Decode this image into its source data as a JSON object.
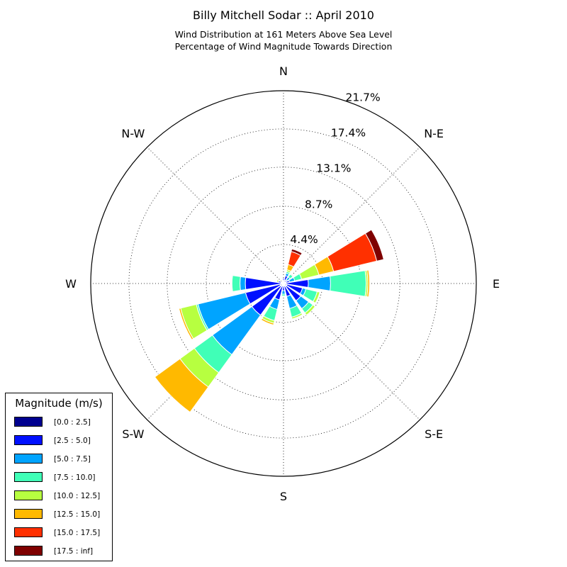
{
  "title": "Billy Mitchell Sodar :: April 2010",
  "subtitle_1": "Wind Distribution at 161 Meters Above Sea Level",
  "subtitle_2": "Percentage of Wind Magnitude Towards Direction",
  "legend": {
    "title": "Magnitude (m/s)",
    "entries": [
      {
        "label": "[0.0 : 2.5]",
        "color": "#00008f"
      },
      {
        "label": "[2.5 : 5.0]",
        "color": "#0010ff"
      },
      {
        "label": "[5.0 : 7.5]",
        "color": "#00a4ff"
      },
      {
        "label": "[7.5 : 10.0]",
        "color": "#40ffb7"
      },
      {
        "label": "[10.0 : 12.5]",
        "color": "#b7ff40"
      },
      {
        "label": "[12.5 : 15.0]",
        "color": "#ffb900"
      },
      {
        "label": "[15.0 : 17.5]",
        "color": "#ff3000"
      },
      {
        "label": "[17.5 : inf]",
        "color": "#7f0000"
      }
    ]
  },
  "chart_data": {
    "type": "windrose",
    "radial_max": 21.7,
    "radial_ticks": [
      4.4,
      8.7,
      13.1,
      17.4,
      21.7
    ],
    "radial_tick_labels": [
      "4.4%",
      "8.7%",
      "13.1%",
      "17.4%",
      "21.7%"
    ],
    "direction_labels": [
      {
        "label": "N",
        "angle": 0
      },
      {
        "label": "N-E",
        "angle": 45
      },
      {
        "label": "E",
        "angle": 90
      },
      {
        "label": "S-E",
        "angle": 135
      },
      {
        "label": "S",
        "angle": 180
      },
      {
        "label": "S-W",
        "angle": 225
      },
      {
        "label": "W",
        "angle": 270
      },
      {
        "label": "N-W",
        "angle": 315
      }
    ],
    "grid": true,
    "legend_position": "lower-left",
    "sector_width_deg": 18,
    "bins": [
      "[0.0 : 2.5]",
      "[2.5 : 5.0]",
      "[5.0 : 7.5]",
      "[7.5 : 10.0]",
      "[10.0 : 12.5]",
      "[12.5 : 15.0]",
      "[15.0 : 17.5]",
      "[17.5 : inf]"
    ],
    "sectors": [
      {
        "direction": 0,
        "values": [
          0.4,
          0.2,
          0,
          0,
          0,
          0,
          0,
          0
        ]
      },
      {
        "direction": 22.5,
        "values": [
          0.4,
          0.5,
          0.3,
          0.2,
          0.2,
          0.6,
          1.5,
          0.3
        ]
      },
      {
        "direction": 45,
        "values": [
          0.2,
          0.3,
          0.4,
          0.4,
          0,
          0,
          0,
          0
        ]
      },
      {
        "direction": 67.5,
        "values": [
          0.3,
          0.4,
          0.6,
          0.8,
          2.0,
          1.7,
          5.0,
          0.8
        ]
      },
      {
        "direction": 90,
        "values": [
          0.3,
          2.5,
          2.5,
          4.0,
          0.2,
          0.2,
          0,
          0
        ]
      },
      {
        "direction": 112.5,
        "values": [
          0.4,
          1.8,
          0.4,
          1.3,
          0.3,
          0,
          0,
          0
        ]
      },
      {
        "direction": 135,
        "values": [
          0.4,
          2.0,
          1.1,
          0.6,
          0.3,
          0,
          0,
          0
        ]
      },
      {
        "direction": 157.5,
        "values": [
          0.3,
          1.2,
          1.4,
          1.0,
          0.2,
          0,
          0,
          0
        ]
      },
      {
        "direction": 180,
        "values": [
          0.3,
          0.5,
          0.4,
          0.2,
          0,
          0,
          0,
          0
        ]
      },
      {
        "direction": 202.5,
        "values": [
          0.3,
          1.6,
          1.1,
          1.3,
          0.3,
          0.2,
          0,
          0
        ]
      },
      {
        "direction": 225,
        "values": [
          0.4,
          4.0,
          5.5,
          2.5,
          2.0,
          3.5,
          0,
          0
        ]
      },
      {
        "direction": 247.5,
        "values": [
          0.4,
          4.0,
          5.5,
          0.2,
          1.8,
          0.2,
          0,
          0
        ]
      },
      {
        "direction": 270,
        "values": [
          0.3,
          4.0,
          0.6,
          0.9,
          0,
          0,
          0,
          0
        ]
      },
      {
        "direction": 292.5,
        "values": [
          0.3,
          0.3,
          0,
          0,
          0.2,
          0,
          0,
          0
        ]
      },
      {
        "direction": 315,
        "values": [
          0.3,
          0,
          0,
          0,
          0,
          0,
          0,
          0
        ]
      },
      {
        "direction": 337.5,
        "values": [
          0.3,
          0,
          0,
          0,
          0,
          0,
          0,
          0
        ]
      }
    ]
  }
}
